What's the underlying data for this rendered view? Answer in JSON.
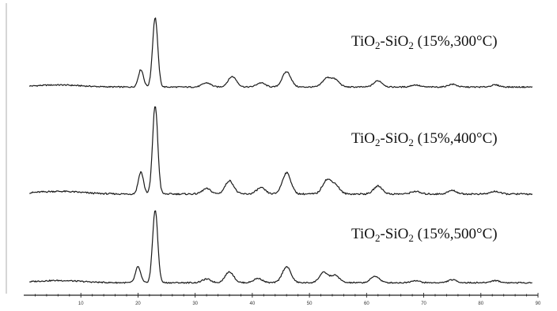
{
  "chart_data": {
    "type": "line",
    "title": "",
    "xlabel": "",
    "ylabel": "",
    "xlim": [
      0,
      90
    ],
    "x_ticks": [
      10,
      20,
      30,
      40,
      50,
      60,
      70,
      80,
      90
    ],
    "x_tick_labels": [
      "10",
      "20",
      "30",
      "40",
      "50",
      "60",
      "70",
      "80",
      "90"
    ],
    "grid": false,
    "legend": "none",
    "series": [
      {
        "label_main": "TiO",
        "label_sub1": "2",
        "label_mid": "-SiO",
        "label_sub2": "2",
        "label_tail": " (15%,300°C)",
        "peaks": [
          [
            20.5,
            0.25
          ],
          [
            23.0,
            1.0
          ],
          [
            32.0,
            0.06
          ],
          [
            36.5,
            0.15
          ],
          [
            41.5,
            0.06
          ],
          [
            46.0,
            0.22
          ],
          [
            53.0,
            0.12
          ],
          [
            54.5,
            0.1
          ],
          [
            62.0,
            0.09
          ],
          [
            68.5,
            0.03
          ],
          [
            75.0,
            0.04
          ],
          [
            82.5,
            0.03
          ]
        ]
      },
      {
        "label_main": "TiO",
        "label_sub1": "2",
        "label_mid": "-SiO",
        "label_sub2": "2",
        "label_tail": " (15%,400°C)",
        "peaks": [
          [
            20.5,
            0.25
          ],
          [
            23.0,
            1.0
          ],
          [
            32.0,
            0.06
          ],
          [
            36.0,
            0.15
          ],
          [
            41.5,
            0.07
          ],
          [
            46.0,
            0.24
          ],
          [
            53.0,
            0.15
          ],
          [
            54.5,
            0.1
          ],
          [
            62.0,
            0.09
          ],
          [
            68.5,
            0.03
          ],
          [
            75.0,
            0.04
          ],
          [
            82.5,
            0.03
          ]
        ]
      },
      {
        "label_main": "TiO",
        "label_sub1": "2",
        "label_mid": "-SiO",
        "label_sub2": "2",
        "label_tail": " (15%,500°C)",
        "peaks": [
          [
            20.0,
            0.22
          ],
          [
            23.0,
            1.0
          ],
          [
            32.0,
            0.05
          ],
          [
            36.0,
            0.15
          ],
          [
            41.0,
            0.06
          ],
          [
            46.0,
            0.22
          ],
          [
            52.5,
            0.14
          ],
          [
            54.5,
            0.1
          ],
          [
            61.5,
            0.09
          ],
          [
            68.5,
            0.03
          ],
          [
            75.0,
            0.04
          ],
          [
            82.5,
            0.03
          ]
        ]
      }
    ]
  }
}
